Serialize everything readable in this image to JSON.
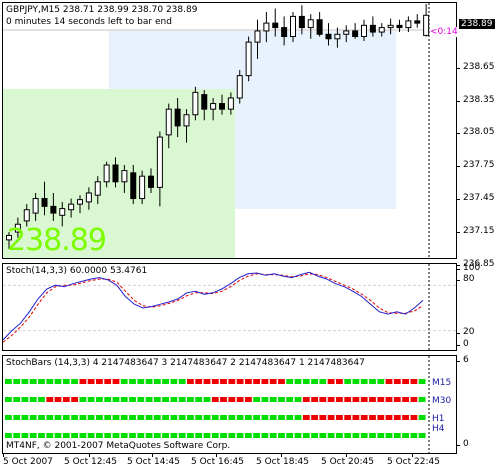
{
  "main": {
    "symbol_line": "GBPJPY,M15  238.71 238.99 238.70 238.89",
    "timer_line": "0 minutes 14 seconds left to bar end",
    "big_price": "238.89",
    "current_price": "238.89",
    "countdown": "<0:14",
    "price_ticks": [
      "238.65",
      "238.35",
      "238.05",
      "237.75",
      "237.45",
      "237.15",
      "236.85"
    ]
  },
  "stoch": {
    "title": "Stoch(14,3,3) 60.0000 53.4761",
    "ticks": [
      "100",
      "80",
      "20",
      "0"
    ]
  },
  "stochbars": {
    "title": "StochBars (14,3,3) 4 2147483647 3 2147483647 2 2147483647 1 2147483647",
    "ticks": [
      "6",
      "0"
    ],
    "labels": [
      "M15",
      "M30",
      "H1",
      "H4"
    ],
    "colors": {
      "up": "#00dd00",
      "down": "#ee0000"
    }
  },
  "copyright": "MT4NF, © 2001-2007 MetaQuotes Software Corp.",
  "time_labels": [
    "5 Oct 2007",
    "5 Oct 12:45",
    "5 Oct 14:45",
    "5 Oct 16:45",
    "5 Oct 18:45",
    "5 Oct 20:45",
    "5 Oct 22:45"
  ],
  "colors": {
    "zone_green": "#d9f7d0",
    "zone_blue": "#e8f2fc",
    "stoch_main": "#2020d0",
    "stoch_signal": "#e00000",
    "big_price": "#7CFC00"
  }
}
